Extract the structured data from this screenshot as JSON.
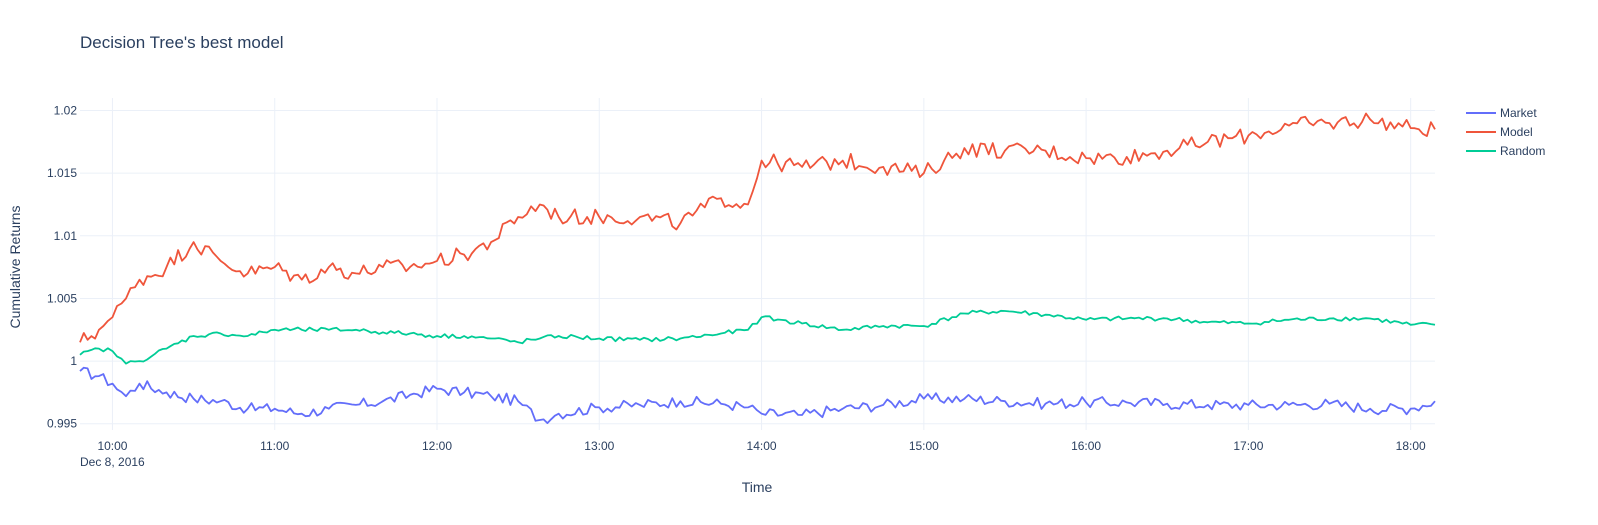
{
  "chart_data": {
    "type": "line",
    "title": "Decision Tree's best model",
    "xlabel": "Time",
    "ylabel": "Cumulative Returns",
    "x_date_label": "Dec 8, 2016",
    "xlim": [
      "09:48",
      "18:09"
    ],
    "ylim": [
      0.9945,
      1.021
    ],
    "grid": true,
    "legend_position": "top-right",
    "xticks": [
      "10:00",
      "11:00",
      "12:00",
      "13:00",
      "14:00",
      "15:00",
      "16:00",
      "17:00",
      "18:00"
    ],
    "yticks": [
      {
        "value": 0.995,
        "label": "0.995"
      },
      {
        "value": 1.0,
        "label": "1"
      },
      {
        "value": 1.005,
        "label": "1.005"
      },
      {
        "value": 1.01,
        "label": "1.01"
      },
      {
        "value": 1.015,
        "label": "1.015"
      },
      {
        "value": 1.02,
        "label": "1.02"
      }
    ],
    "x": [
      "09:48",
      "09:55",
      "10:00",
      "10:05",
      "10:10",
      "10:20",
      "10:30",
      "10:40",
      "10:50",
      "11:00",
      "11:10",
      "11:20",
      "11:30",
      "11:40",
      "11:50",
      "12:00",
      "12:10",
      "12:20",
      "12:30",
      "12:38",
      "12:45",
      "13:00",
      "13:15",
      "13:30",
      "13:45",
      "13:55",
      "14:00",
      "14:15",
      "14:30",
      "14:45",
      "15:00",
      "15:15",
      "15:30",
      "15:45",
      "16:00",
      "16:15",
      "16:30",
      "16:45",
      "17:00",
      "17:15",
      "17:30",
      "17:45",
      "18:00",
      "18:09"
    ],
    "series": [
      {
        "name": "Market",
        "color": "#636efa",
        "values": [
          0.9992,
          0.9988,
          0.9982,
          0.9972,
          0.9982,
          0.9975,
          0.997,
          0.9968,
          0.9962,
          0.9962,
          0.9958,
          0.9962,
          0.9965,
          0.9968,
          0.9973,
          0.9978,
          0.9975,
          0.9972,
          0.9968,
          0.9953,
          0.9958,
          0.9963,
          0.9965,
          0.9968,
          0.9966,
          0.9963,
          0.9958,
          0.9957,
          0.9962,
          0.9965,
          0.997,
          0.997,
          0.9968,
          0.9966,
          0.9967,
          0.9967,
          0.9966,
          0.9965,
          0.9965,
          0.9965,
          0.9966,
          0.9962,
          0.9962,
          0.9968
        ]
      },
      {
        "name": "Model",
        "color": "#ef553b",
        "values": [
          1.0015,
          1.0025,
          1.0035,
          1.005,
          1.0065,
          1.0075,
          1.0095,
          1.008,
          1.007,
          1.0075,
          1.0065,
          1.0075,
          1.007,
          1.0075,
          1.0075,
          1.008,
          1.0085,
          1.0095,
          1.0115,
          1.0125,
          1.0115,
          1.0115,
          1.0115,
          1.011,
          1.013,
          1.0125,
          1.016,
          1.0155,
          1.016,
          1.0155,
          1.015,
          1.017,
          1.0168,
          1.0168,
          1.0162,
          1.0163,
          1.0168,
          1.0175,
          1.018,
          1.0188,
          1.019,
          1.0193,
          1.0186,
          1.0185
        ]
      },
      {
        "name": "Random",
        "color": "#00cc96",
        "values": [
          1.0005,
          1.001,
          1.0008,
          0.9998,
          1.0,
          1.001,
          1.002,
          1.0022,
          1.002,
          1.0025,
          1.0025,
          1.0025,
          1.0025,
          1.0023,
          1.0022,
          1.002,
          1.002,
          1.0018,
          1.0015,
          1.0018,
          1.002,
          1.0018,
          1.0017,
          1.0018,
          1.0022,
          1.0025,
          1.0035,
          1.003,
          1.0025,
          1.0028,
          1.0028,
          1.0038,
          1.004,
          1.0037,
          1.0033,
          1.0034,
          1.0034,
          1.0031,
          1.003,
          1.0033,
          1.0034,
          1.0034,
          1.0029,
          1.0029
        ]
      }
    ]
  }
}
